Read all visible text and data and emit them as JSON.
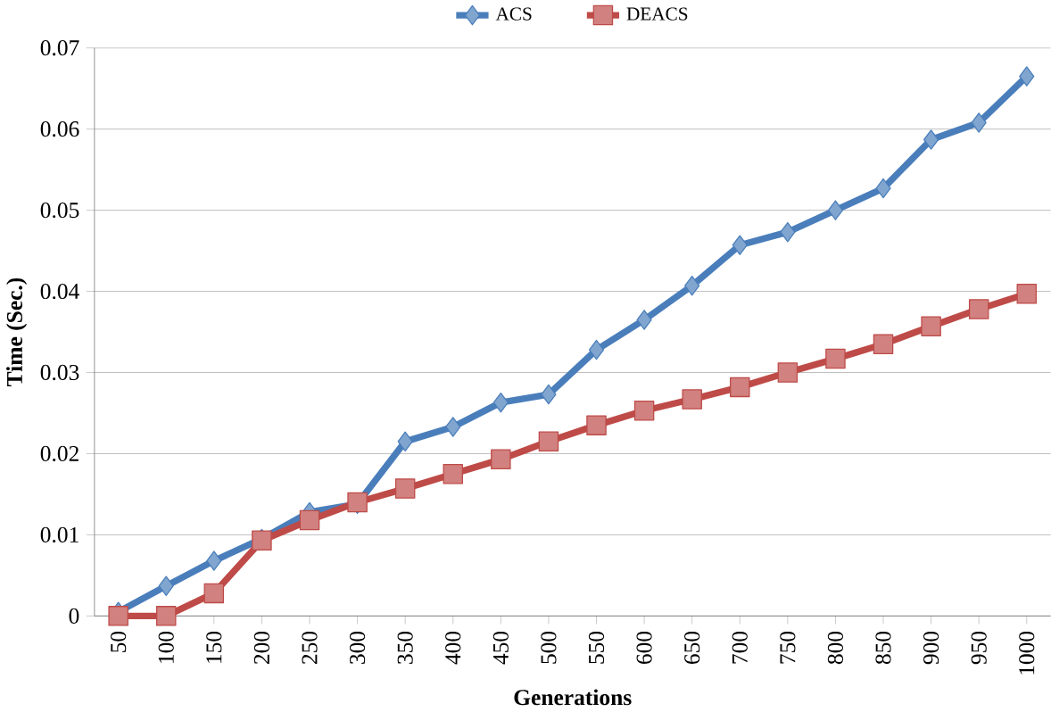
{
  "chart_data": {
    "type": "line",
    "xlabel": "Generations",
    "ylabel": "Time (Sec.)",
    "categories": [
      "50",
      "100",
      "150",
      "200",
      "250",
      "300",
      "350",
      "400",
      "450",
      "500",
      "550",
      "600",
      "650",
      "700",
      "750",
      "800",
      "850",
      "900",
      "950",
      "1000"
    ],
    "series": [
      {
        "name": "ACS",
        "color": "#4a7ebb",
        "marker": "diamond",
        "values": [
          0.0005,
          0.0037,
          0.0068,
          0.0095,
          0.0128,
          0.0138,
          0.0215,
          0.0233,
          0.0263,
          0.0273,
          0.0328,
          0.0365,
          0.0407,
          0.0457,
          0.0473,
          0.05,
          0.0527,
          0.0587,
          0.0608,
          0.0665
        ]
      },
      {
        "name": "DEACS",
        "color": "#be4b48",
        "marker": "square",
        "values": [
          0.0,
          0.0,
          0.0028,
          0.0093,
          0.0118,
          0.014,
          0.0157,
          0.0175,
          0.0193,
          0.0215,
          0.0235,
          0.0253,
          0.0267,
          0.0282,
          0.03,
          0.0317,
          0.0335,
          0.0357,
          0.0378,
          0.0397
        ]
      }
    ],
    "ylim": [
      0,
      0.07
    ],
    "yticks": [
      0,
      0.01,
      0.02,
      0.03,
      0.04,
      0.05,
      0.06,
      0.07
    ],
    "grid": "y",
    "legend": "top",
    "line_style": "solid"
  }
}
